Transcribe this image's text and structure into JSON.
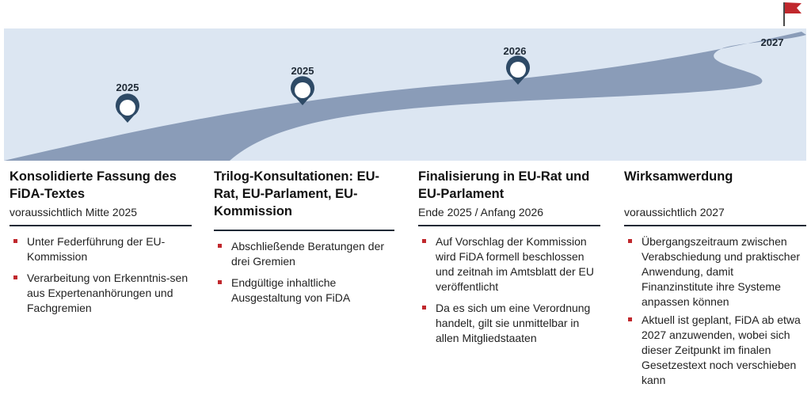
{
  "milestones": [
    {
      "year": "2025"
    },
    {
      "year": "2025"
    },
    {
      "year": "2026"
    },
    {
      "year": "2027"
    }
  ],
  "columns": [
    {
      "title": "Konsolidierte Fassung des FiDA-Textes",
      "subtitle": "voraussichtlich Mitte 2025",
      "bullets": [
        "Unter Federführung der EU-Kommission",
        "Verarbeitung von Erkenntnis-sen aus Expertenanhörungen und Fachgremien"
      ]
    },
    {
      "title": "Trilog-Konsultationen: EU-Rat, EU-Parlament, EU-Kommission",
      "subtitle": "",
      "bullets": [
        "Abschließende Beratungen der drei Gremien",
        "Endgültige inhaltliche Ausgestaltung von FiDA"
      ]
    },
    {
      "title": "Finalisierung in EU-Rat und EU-Parlament",
      "subtitle": "Ende 2025 / Anfang 2026",
      "bullets": [
        "Auf Vorschlag der Kommission wird FiDA formell beschlossen und zeitnah im Amtsblatt der EU veröffentlicht",
        "Da es sich um eine Verordnung handelt, gilt sie unmittelbar in allen Mitgliedstaaten"
      ]
    },
    {
      "title": "Wirksamwerdung",
      "subtitle": "voraussichtlich 2027",
      "bullets": [
        "Übergangszeitraum zwischen Verabschiedung und praktischer Anwendung, damit Finanzinstitute ihre Systeme anpassen können",
        "Aktuell ist geplant, FiDA ab etwa 2027 anzuwenden, wobei sich dieser Zeitpunkt im finalen Gesetzestext noch verschieben kann"
      ]
    }
  ],
  "colors": {
    "sky": "#dce6f2",
    "road": "#8a9cb8",
    "pin": "#2e4a66",
    "flag": "#c0282d",
    "rule": "#1f2a36"
  }
}
